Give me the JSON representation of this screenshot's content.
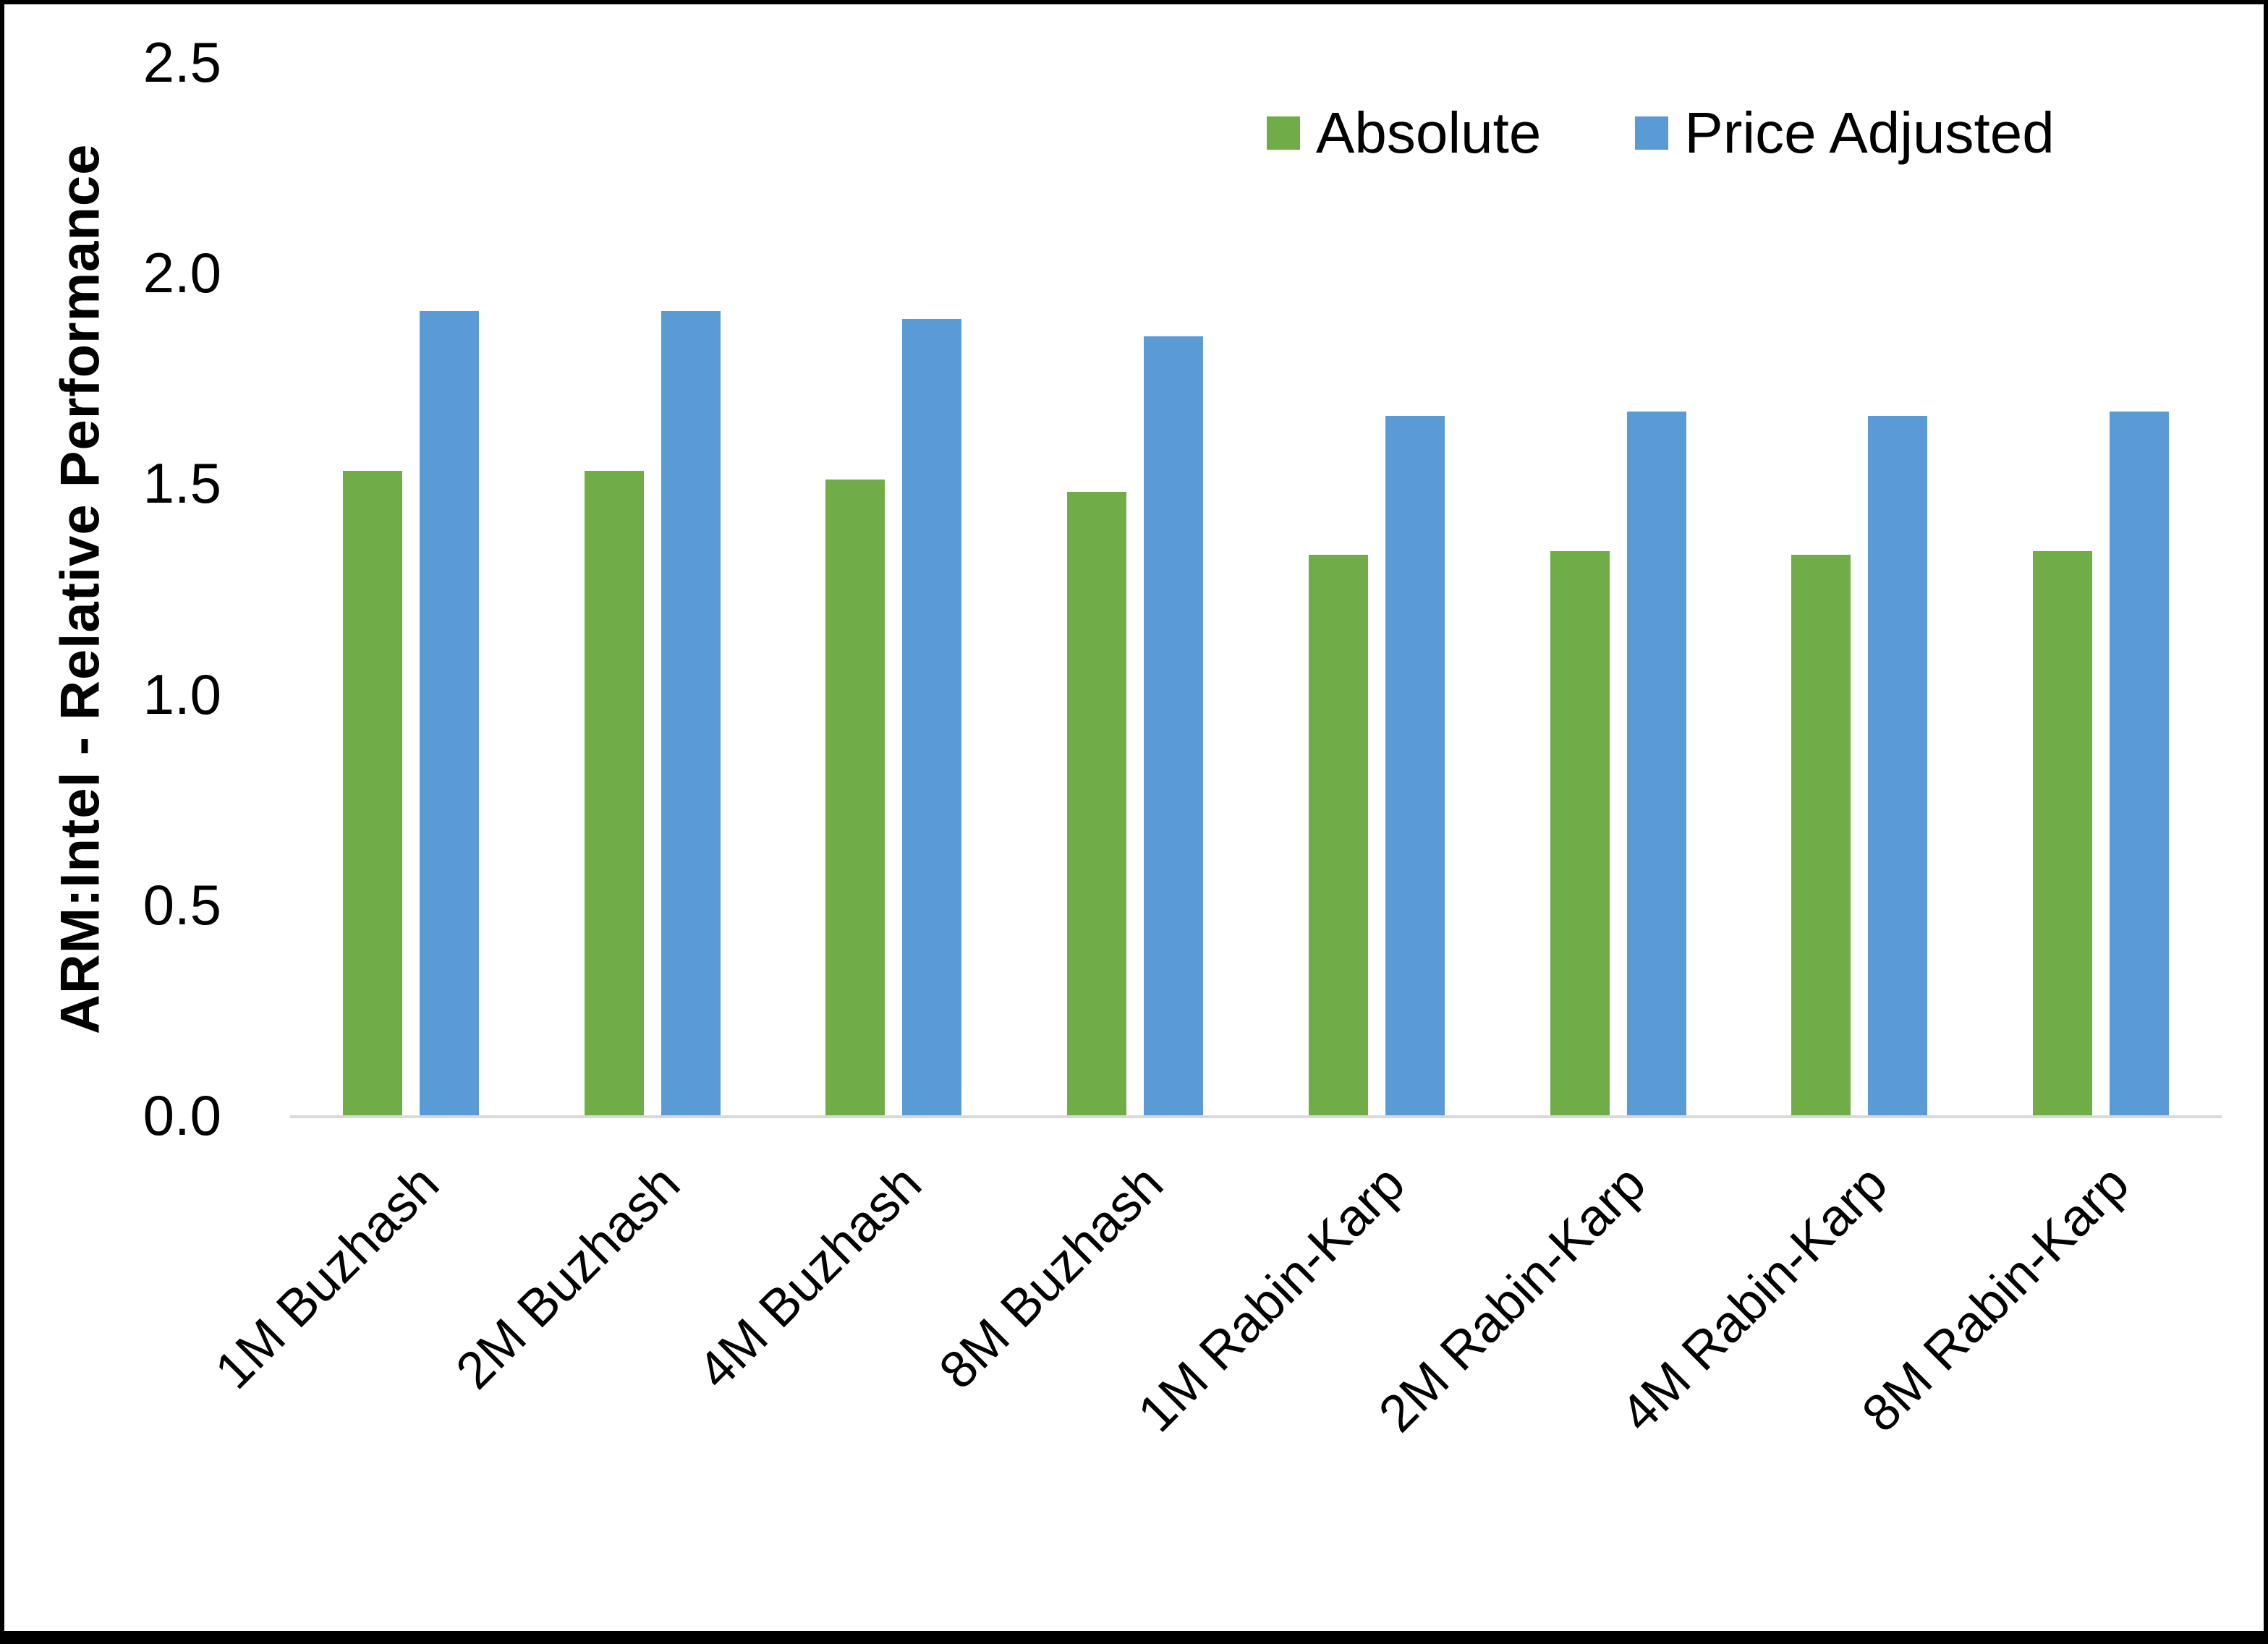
{
  "figure": {
    "background": "#ffffff",
    "border_color": "#000000"
  },
  "chart_data": {
    "type": "bar",
    "title": "",
    "xlabel": "",
    "ylabel": "ARM:Intel - Relative Performance",
    "ylim": [
      0,
      2.5
    ],
    "y_ticks": [
      "0.0",
      "0.5",
      "1.0",
      "1.5",
      "2.0",
      "2.5"
    ],
    "grid": false,
    "legend_position": "top-right",
    "axis_line_color": "#d9d9d9",
    "categories": [
      "1M Buzhash",
      "2M Buzhash",
      "4M Buzhash",
      "8M Buzhash",
      "1M Rabin-Karp",
      "2M Rabin-Karp",
      "4M Rabin-Karp",
      "8M Rabin-Karp"
    ],
    "series": [
      {
        "name": "Absolute",
        "color": "#70AD47",
        "values": [
          1.53,
          1.53,
          1.51,
          1.48,
          1.33,
          1.34,
          1.33,
          1.34
        ]
      },
      {
        "name": "Price Adjusted",
        "color": "#5B9BD5",
        "values": [
          1.91,
          1.91,
          1.89,
          1.85,
          1.66,
          1.67,
          1.66,
          1.67
        ]
      }
    ]
  }
}
